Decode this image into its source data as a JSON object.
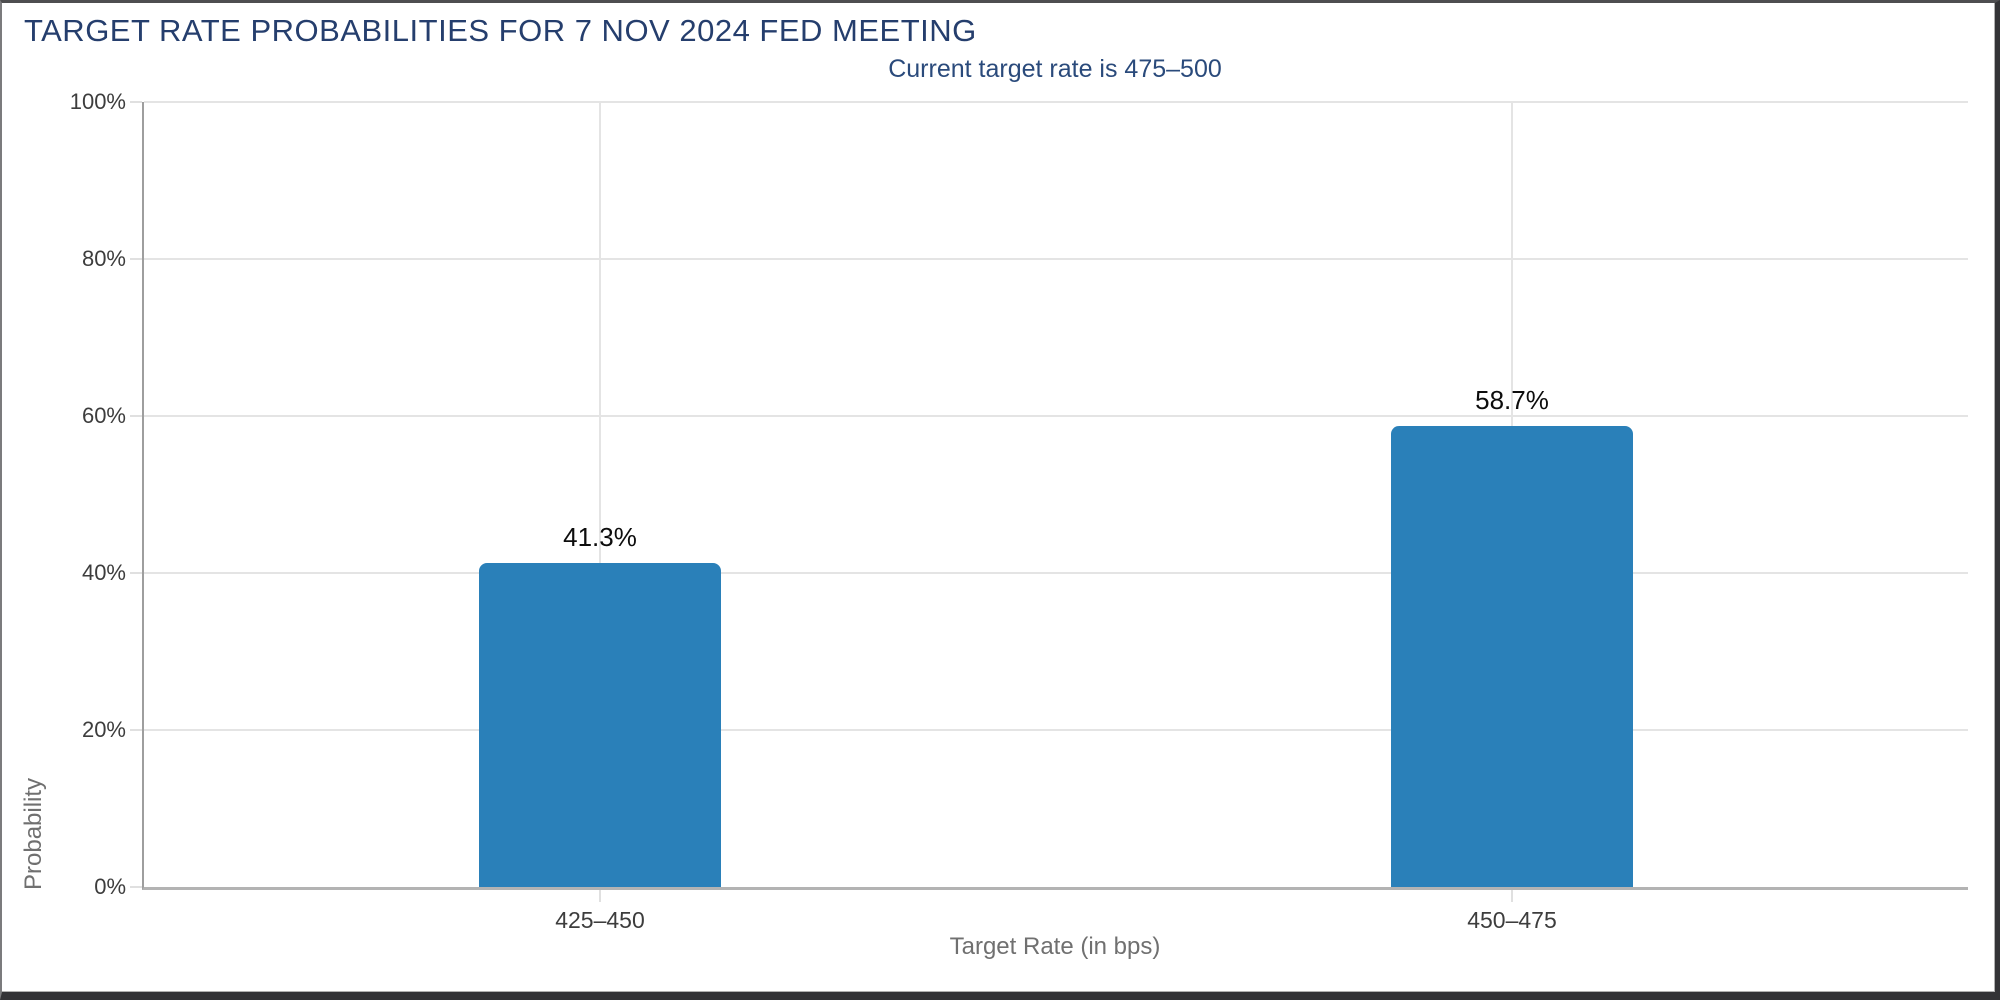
{
  "window": {
    "title": "TARGET RATE PROBABILITIES FOR 7 NOV 2024 FED MEETING"
  },
  "chart_data": {
    "type": "bar",
    "title": "TARGET RATE PROBABILITIES FOR 7 NOV 2024 FED MEETING",
    "subtitle": "Current target rate is 475–500",
    "categories": [
      "425–450",
      "450–475"
    ],
    "values": [
      41.3,
      58.7
    ],
    "value_labels": [
      "41.3%",
      "58.7%"
    ],
    "xlabel": "Target Rate (in bps)",
    "ylabel": "Probability",
    "ylim": [
      0,
      100
    ],
    "yticks": [
      0,
      20,
      40,
      60,
      80,
      100
    ],
    "ytick_labels": [
      "0%",
      "20%",
      "40%",
      "60%",
      "80%",
      "100%"
    ],
    "grid": true,
    "legend": "none",
    "colors": {
      "bar": "#2a80b9",
      "title": "#253e6d",
      "subtitle": "#2a4a7b",
      "axis_title": "#707070",
      "tick_label": "#3d3d3d",
      "gridline": "#e4e4e4",
      "axis_line": "#9e9e9e"
    }
  }
}
